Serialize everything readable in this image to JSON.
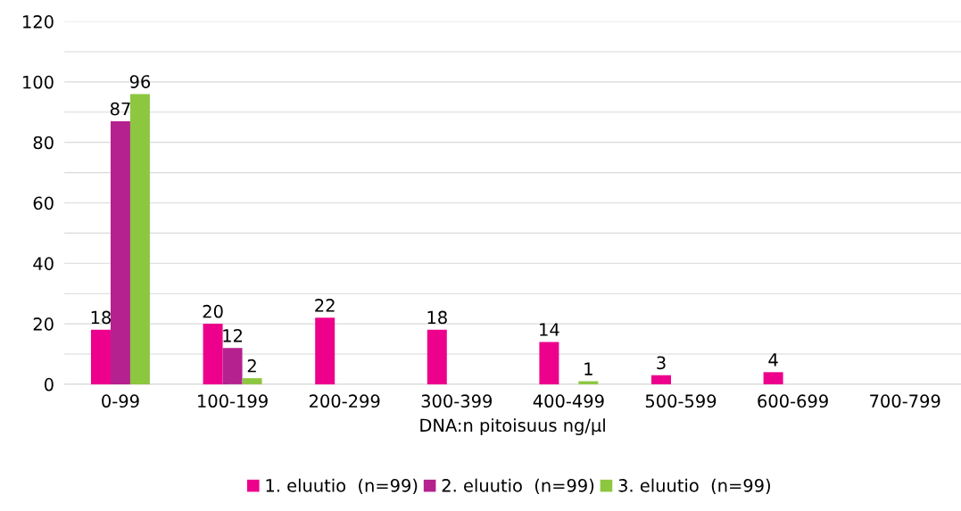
{
  "chart_data": {
    "type": "bar",
    "xlabel": "DNA:n pitoisuus ng/µl",
    "categories": [
      "0-99",
      "100-199",
      "200-299",
      "300-399",
      "400-499",
      "500-599",
      "600-699",
      "700-799"
    ],
    "series": [
      {
        "name": "1. eluutio  (n=99)",
        "color": "#ec008c",
        "values": [
          18,
          20,
          22,
          18,
          14,
          3,
          4,
          0
        ],
        "value_labels": [
          "18",
          "20",
          "22",
          "18",
          "14",
          "3",
          "4",
          null
        ]
      },
      {
        "name": "2. eluutio  (n=99)",
        "color": "#b5218f",
        "values": [
          87,
          12,
          0,
          0,
          0,
          0,
          0,
          0
        ],
        "value_labels": [
          "87",
          "12",
          null,
          null,
          null,
          null,
          null,
          null
        ]
      },
      {
        "name": "3. eluutio  (n=99)",
        "color": "#8dc63f",
        "values": [
          96,
          2,
          0,
          0,
          1,
          0,
          0,
          0
        ],
        "value_labels": [
          "96",
          "2",
          null,
          null,
          "1",
          null,
          null,
          null
        ]
      }
    ],
    "ylim": [
      0,
      120
    ],
    "yticks": [
      0,
      {
        "value": 10,
        "label": null
      },
      20,
      {
        "value": 30,
        "label": null
      },
      40,
      {
        "value": 50,
        "label": null
      },
      60,
      {
        "value": 70,
        "label": null
      },
      80,
      {
        "value": 90,
        "label": null
      },
      100,
      {
        "value": 110,
        "label": null
      },
      120
    ],
    "grid": "y",
    "legend": "bottom"
  }
}
